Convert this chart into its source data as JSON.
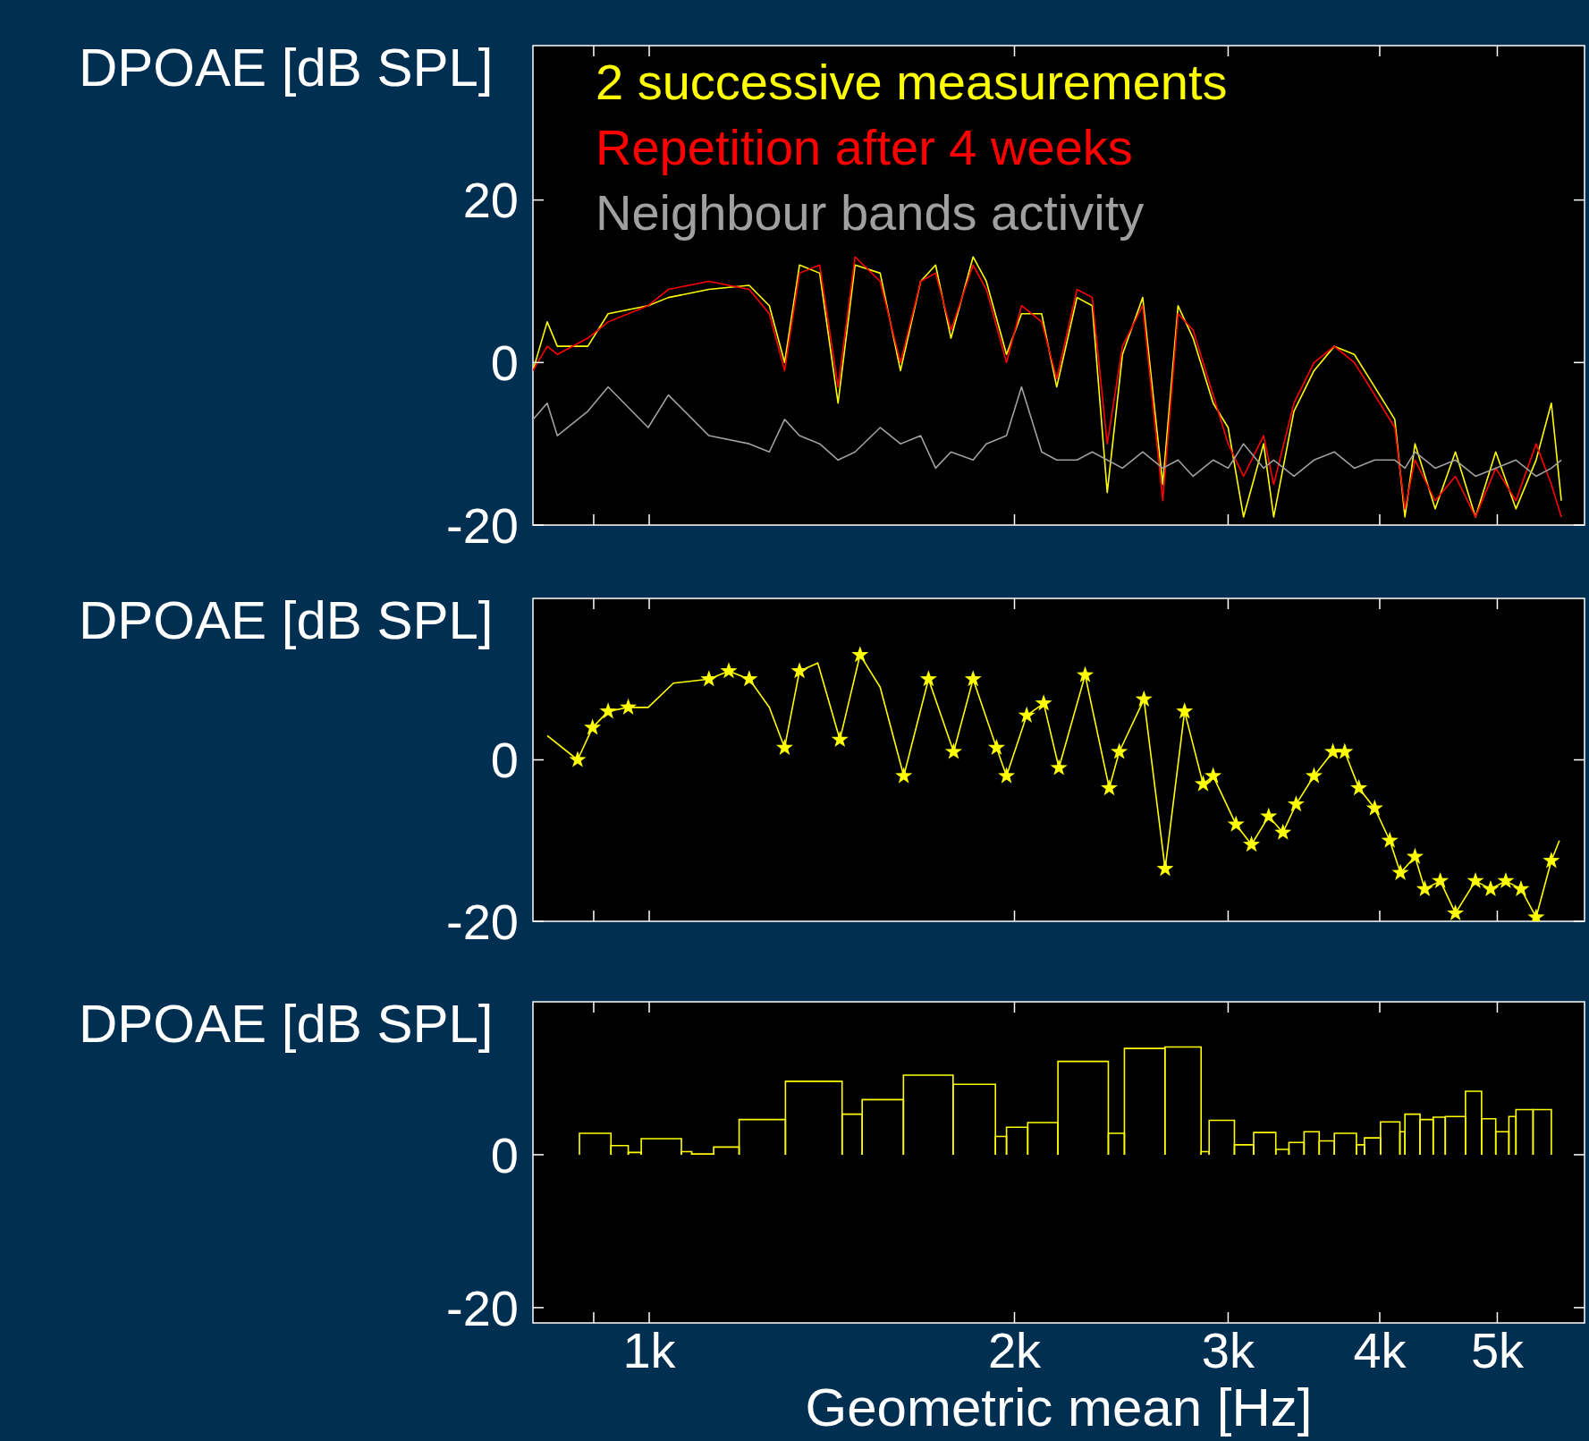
{
  "chart_data": [
    {
      "type": "line",
      "ylabel": "DPOAE [dB SPL]",
      "log": "x",
      "tick_labels": "y",
      "legend": "top left",
      "xlim": [
        802,
        5900
      ],
      "xticks": [
        {
          "value": 900,
          "label": null
        },
        {
          "value": 1000,
          "label": null
        },
        {
          "value": 2000,
          "label": null
        },
        {
          "value": 3000,
          "label": null
        },
        {
          "value": 4000,
          "label": null
        },
        {
          "value": 5000,
          "label": null
        }
      ],
      "ylim": [
        -20,
        39
      ],
      "yticks": [
        -20,
        0,
        20
      ],
      "x": [
        802,
        824,
        840,
        890,
        925,
        998,
        1037,
        1120,
        1209,
        1256,
        1293,
        1330,
        1382,
        1431,
        1478,
        1550,
        1611,
        1674,
        1722,
        1773,
        1849,
        1896,
        1970,
        2027,
        2106,
        2167,
        2252,
        2318,
        2385,
        2455,
        2551,
        2650,
        2728,
        2807,
        2916,
        3000,
        3089,
        3209,
        3271,
        3399,
        3531,
        3670,
        3812,
        3962,
        4116,
        4196,
        4277,
        4444,
        4618,
        4797,
        4985,
        5180,
        5382,
        5540,
        5646
      ],
      "series": [
        {
          "name": "2 successive measurements",
          "color": "#ffff00",
          "values": [
            -1,
            5,
            2,
            2,
            6,
            7,
            8,
            9,
            9.5,
            7,
            0,
            12,
            11,
            -5,
            12,
            11,
            -1,
            10,
            12,
            3,
            13,
            10,
            1,
            6,
            6,
            -3,
            8,
            7,
            -16,
            1,
            8,
            -15,
            7,
            3,
            -5,
            -8,
            -19,
            -10,
            -19,
            -6,
            -1,
            2,
            1,
            -3,
            -7,
            -19,
            -10,
            -18,
            -11,
            -19,
            -11,
            -18,
            -12,
            -5,
            -17
          ]
        },
        {
          "name": "Repetition after 4 weeks",
          "color": "#ff0000",
          "values": [
            -1,
            2,
            1,
            3,
            5,
            7,
            9,
            10,
            9,
            6,
            -1,
            11,
            12,
            -3,
            13,
            10,
            0,
            10,
            11,
            4,
            12,
            9,
            0,
            7,
            5,
            -2,
            9,
            8,
            -10,
            2,
            7,
            -17,
            6,
            4,
            -4,
            -10,
            -14,
            -9,
            -15,
            -5,
            0,
            2,
            0,
            -4,
            -8,
            -18,
            -12,
            -17,
            -14,
            -19,
            -13,
            -17,
            -10,
            -15,
            -19
          ]
        },
        {
          "name": "Neighbour bands activity",
          "color": "#a0a0a0",
          "values": [
            -7,
            -5,
            -9,
            -6,
            -3,
            -8,
            -4,
            -9,
            -10,
            -11,
            -7,
            -9,
            -10,
            -12,
            -11,
            -8,
            -10,
            -9,
            -13,
            -11,
            -12,
            -10,
            -9,
            -3,
            -11,
            -12,
            -12,
            -11,
            -12,
            -13,
            -11,
            -13,
            -12,
            -14,
            -12,
            -13,
            -10,
            -13,
            -12,
            -14,
            -12,
            -11,
            -13,
            -12,
            -12,
            -13,
            -11,
            -13,
            -12,
            -14,
            -13,
            -12,
            -14,
            -13,
            -12
          ]
        }
      ]
    },
    {
      "type": "line",
      "ylabel": "DPOAE [dB SPL]",
      "log": "x",
      "tick_labels": "y",
      "xlim": [
        802,
        5900
      ],
      "xticks": [
        {
          "value": 900,
          "label": null
        },
        {
          "value": 1000,
          "label": null
        },
        {
          "value": 2000,
          "label": null
        },
        {
          "value": 3000,
          "label": null
        },
        {
          "value": 4000,
          "label": null
        },
        {
          "value": 5000,
          "label": null
        }
      ],
      "ylim": [
        -20,
        20
      ],
      "yticks": [
        -20,
        0
      ],
      "series": [
        {
          "color": "#ffff00",
          "x": [
            824,
            873,
            898,
            925,
            961,
            998,
            1047,
            1120,
            1163,
            1209,
            1256,
            1293,
            1330,
            1377,
            1436,
            1492,
            1550,
            1621,
            1699,
            1782,
            1849,
            1933,
            1970,
            2047,
            2114,
            2176,
            2287,
            2394,
            2440,
            2557,
            2662,
            2762,
            2861,
            2916,
            3045,
            3136,
            3240,
            3329,
            3413,
            3531,
            3660,
            3743,
            3845,
            3962,
            4077,
            4160,
            4277,
            4357,
            4487,
            4618,
            4797,
            4937,
            5081,
            5230,
            5382,
            5540,
            5625
          ],
          "values": [
            3,
            0,
            4,
            6,
            6.5,
            6.5,
            9.5,
            10,
            11,
            10,
            6.5,
            1.5,
            11,
            12,
            2.5,
            13,
            9,
            -2,
            10,
            1,
            10,
            1.5,
            -2,
            5.5,
            7,
            -1,
            10.5,
            -3.5,
            1,
            7.5,
            -13.5,
            6,
            -3,
            -2,
            -8,
            -10.5,
            -7,
            -9,
            -5.5,
            -2,
            1,
            1,
            -3.5,
            -6,
            -10,
            -14,
            -12,
            -16,
            -15,
            -19,
            -15,
            -16,
            -15,
            -16,
            -19.5,
            -12.5,
            -10
          ]
        },
        {
          "type": "scatter",
          "marker": "star",
          "color": "#ffff00",
          "x": [
            873,
            898,
            925,
            961,
            1120,
            1163,
            1209,
            1293,
            1330,
            1436,
            1492,
            1621,
            1699,
            1782,
            1849,
            1933,
            1970,
            2047,
            2114,
            2176,
            2287,
            2394,
            2440,
            2557,
            2662,
            2762,
            2861,
            2916,
            3045,
            3136,
            3240,
            3329,
            3413,
            3531,
            3660,
            3743,
            3845,
            3962,
            4077,
            4160,
            4277,
            4357,
            4487,
            4618,
            4797,
            4937,
            5081,
            5230,
            5382,
            5540
          ],
          "values": [
            0,
            4,
            6,
            6.5,
            10,
            11,
            10,
            1.5,
            11,
            2.5,
            13,
            -2,
            10,
            1,
            10,
            1.5,
            -2,
            5.5,
            7,
            -1,
            10.5,
            -3.5,
            1,
            7.5,
            -13.5,
            6,
            -3,
            -2,
            -8,
            -10.5,
            -7,
            -9,
            -5.5,
            -2,
            1,
            1,
            -3.5,
            -6,
            -10,
            -14,
            -12,
            -16,
            -15,
            -19,
            -15,
            -16,
            -15,
            -16,
            -19.5,
            -12.5
          ]
        }
      ]
    },
    {
      "type": "histogram",
      "ylabel": "DPOAE [dB SPL]",
      "xlabel": "Geometric mean [Hz]",
      "log": "x",
      "color": "#ffff00",
      "xlim": [
        802,
        5900
      ],
      "xticks": [
        {
          "value": 900,
          "label": null
        },
        {
          "value": 1000,
          "label": "1k"
        },
        {
          "value": 2000,
          "label": "2k"
        },
        {
          "value": 3000,
          "label": "3k"
        },
        {
          "value": 4000,
          "label": "4k"
        },
        {
          "value": 5000,
          "label": "5k"
        }
      ],
      "ylim": [
        -22,
        20
      ],
      "yticks": [
        -20,
        0
      ],
      "bins": [
        876,
        930,
        961,
        985,
        1063,
        1084,
        1130,
        1186,
        1295,
        1442,
        1498,
        1620,
        1780,
        1929,
        1970,
        2051,
        2172,
        2390,
        2464,
        2661,
        2850,
        2894,
        3036,
        3149,
        3284,
        3367,
        3465,
        3566,
        3670,
        3827,
        3886,
        4006,
        4156,
        4196,
        4318,
        4427,
        4530,
        4707,
        4853,
        4985,
        5111,
        5180,
        5351,
        5540
      ],
      "values": [
        2.8,
        1.2,
        0.3,
        2.1,
        0.4,
        0.1,
        1,
        4.6,
        9.6,
        5.3,
        7.2,
        10.4,
        9.2,
        2.4,
        3.6,
        4.2,
        12.2,
        2.8,
        13.9,
        14.1,
        0.4,
        4.5,
        1.3,
        2.9,
        0.7,
        1.6,
        3,
        1.8,
        2.8,
        1.3,
        2.2,
        4.3,
        3,
        5.3,
        4.6,
        4.9,
        5,
        8.3,
        4.7,
        3,
        5,
        5.9,
        5.9
      ]
    }
  ]
}
